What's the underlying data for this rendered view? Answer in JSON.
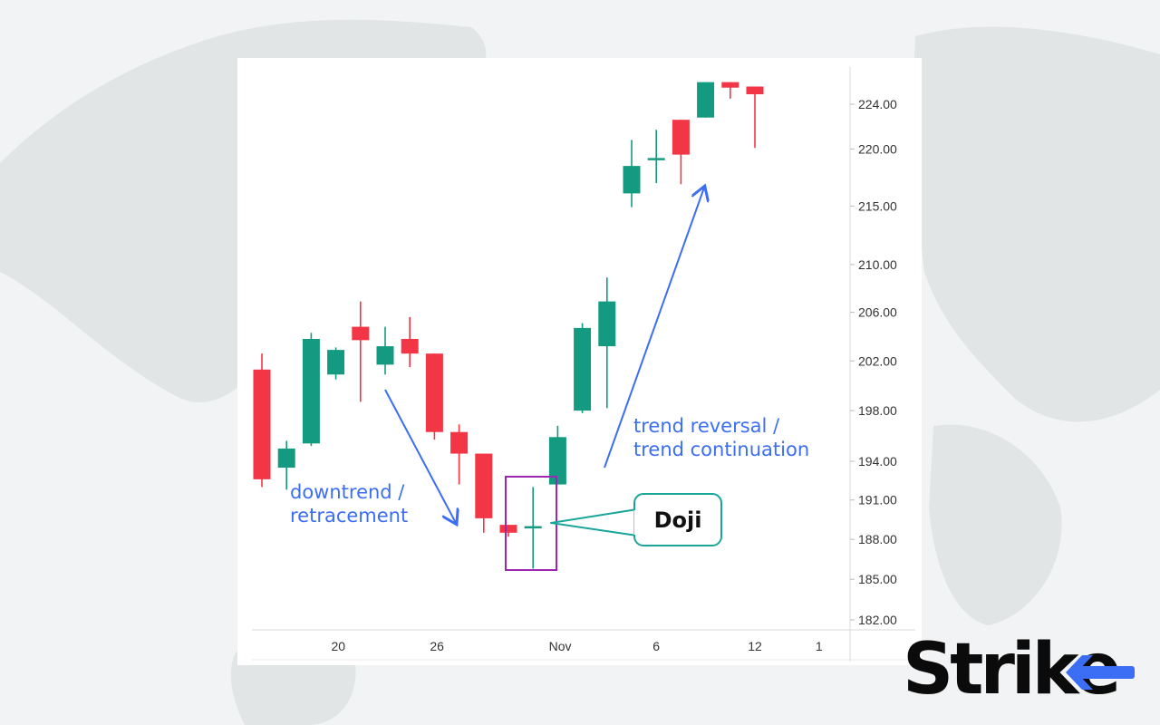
{
  "chart_data": {
    "type": "candlestick",
    "x_ticks": [
      "20",
      "26",
      "Nov",
      "6",
      "12",
      "1"
    ],
    "y_ticks": [
      182,
      185,
      188,
      191,
      194,
      198,
      202,
      206,
      210,
      215,
      220,
      224
    ],
    "y_tick_labels": [
      "182.00",
      "185.00",
      "188.00",
      "191.00",
      "194.00",
      "198.00",
      "202.00",
      "206.00",
      "210.00",
      "215.00",
      "220.00",
      "224.00"
    ],
    "scale": "log",
    "candles": [
      {
        "open": 201.3,
        "high": 202.6,
        "low": 192.0,
        "close": 192.6
      },
      {
        "open": 193.5,
        "high": 195.6,
        "low": 191.8,
        "close": 195.0
      },
      {
        "open": 195.4,
        "high": 204.3,
        "low": 195.2,
        "close": 203.8
      },
      {
        "open": 200.9,
        "high": 203.1,
        "low": 200.5,
        "close": 202.9
      },
      {
        "open": 204.8,
        "high": 206.9,
        "low": 198.7,
        "close": 203.7
      },
      {
        "open": 201.7,
        "high": 204.8,
        "low": 200.9,
        "close": 203.2
      },
      {
        "open": 203.8,
        "high": 205.6,
        "low": 201.5,
        "close": 202.6
      },
      {
        "open": 202.6,
        "high": 202.6,
        "low": 195.7,
        "close": 196.3
      },
      {
        "open": 196.3,
        "high": 196.9,
        "low": 192.2,
        "close": 194.6
      },
      {
        "open": 194.6,
        "high": 194.6,
        "low": 188.5,
        "close": 189.6
      },
      {
        "open": 189.1,
        "high": 189.1,
        "low": 188.2,
        "close": 188.5
      },
      {
        "open": 189.0,
        "high": 192.0,
        "low": 185.8,
        "close": 189.0
      },
      {
        "open": 192.2,
        "high": 196.8,
        "low": 192.2,
        "close": 195.9
      },
      {
        "open": 198.0,
        "high": 205.1,
        "low": 197.8,
        "close": 204.7
      },
      {
        "open": 203.2,
        "high": 208.9,
        "low": 198.2,
        "close": 206.9
      },
      {
        "open": 216.1,
        "high": 220.8,
        "low": 214.9,
        "close": 218.5
      },
      {
        "open": 219.2,
        "high": 221.7,
        "low": 217.0,
        "close": 219.2
      },
      {
        "open": 222.6,
        "high": 222.6,
        "low": 216.9,
        "close": 219.5
      },
      {
        "open": 222.8,
        "high": 226.0,
        "low": 222.8,
        "close": 226.0
      },
      {
        "open": 226.0,
        "high": 226.0,
        "low": 224.5,
        "close": 225.5
      },
      {
        "open": 225.6,
        "high": 225.6,
        "low": 220.1,
        "close": 224.9
      }
    ],
    "annotations": [
      {
        "text_lines": [
          "downtrend /",
          "retracement"
        ],
        "color": "#3b6ef5"
      },
      {
        "text_lines": [
          "trend reversal /",
          "trend continuation"
        ],
        "color": "#3b6ef5"
      },
      {
        "text": "Doji",
        "callout_border": "#1aa59a"
      }
    ],
    "colors": {
      "up": "#149a80",
      "down": "#f23645",
      "highlight_box": "#9c27b0",
      "arrow": "#3b6ef5"
    }
  },
  "logo": {
    "text": "Strike"
  }
}
